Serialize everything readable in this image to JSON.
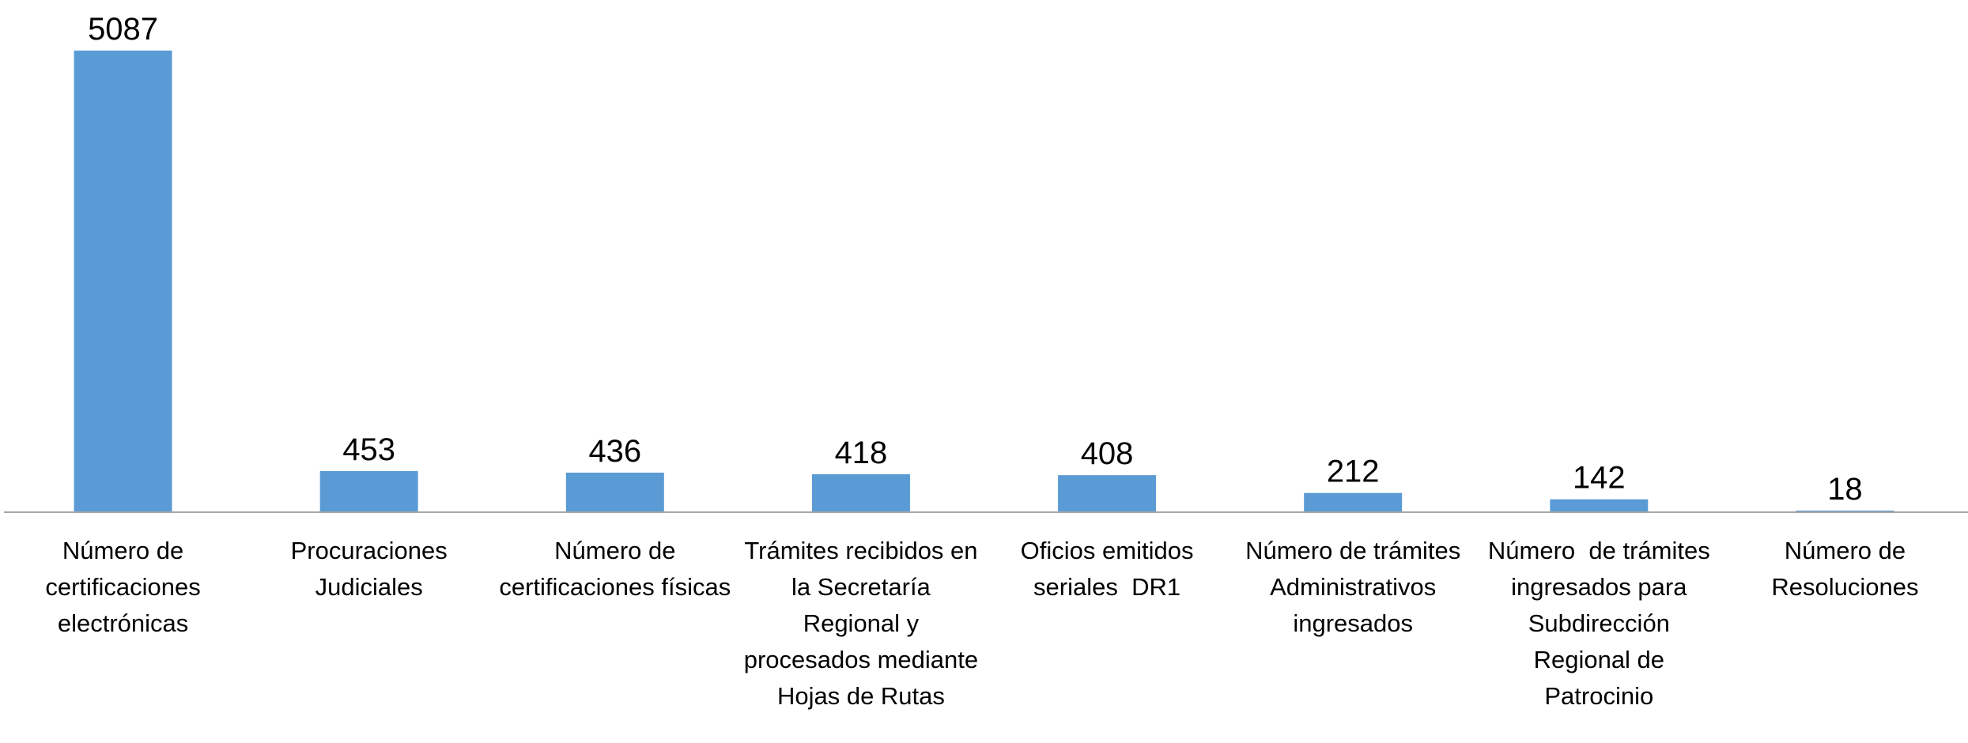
{
  "chart_data": {
    "type": "bar",
    "categories": [
      "Número de certificaciones electrónicas",
      "Procuraciones Judiciales",
      "Número de certificaciones físicas",
      "Trámites recibidos en la Secretaría Regional y procesados mediante Hojas de Rutas",
      "Oficios emitidos seriales  DR1",
      "Número de trámites Administrativos ingresados",
      "Número  de trámites ingresados para Subdirección Regional de Patrocinio",
      "Número de Resoluciones"
    ],
    "values": [
      5087,
      453,
      436,
      418,
      408,
      212,
      142,
      18
    ],
    "color": "#5b9bd5"
  }
}
